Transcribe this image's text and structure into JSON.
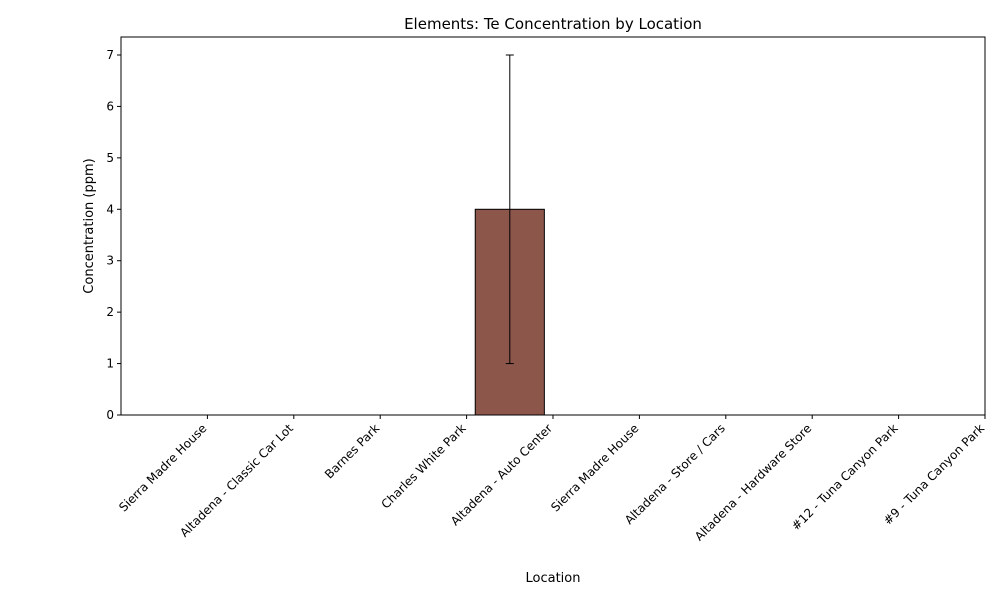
{
  "chart_data": {
    "type": "bar",
    "title": "Elements: Te Concentration by Location",
    "xlabel": "Location",
    "ylabel": "Concentration (ppm)",
    "categories": [
      "Sierra Madre House",
      "Altadena - Classic Car Lot",
      "Barnes Park",
      "Charles White Park",
      "Altadena - Auto Center",
      "Sierra Madre House",
      "Altadena - Store / Cars",
      "Altadena - Hardware Store",
      "#12 - Tuna Canyon Park",
      "#9 - Tuna Canyon Park"
    ],
    "values": [
      0,
      0,
      0,
      0,
      4,
      0,
      0,
      0,
      0,
      0
    ],
    "error": [
      0,
      0,
      0,
      0,
      3,
      0,
      0,
      0,
      0,
      0
    ],
    "ylim": [
      0,
      7.35
    ],
    "yticks": [
      0,
      1,
      2,
      3,
      4,
      5,
      6,
      7
    ],
    "bar_color": "#8c564b",
    "edge_color": "#000000",
    "grid": false,
    "legend": "none"
  }
}
